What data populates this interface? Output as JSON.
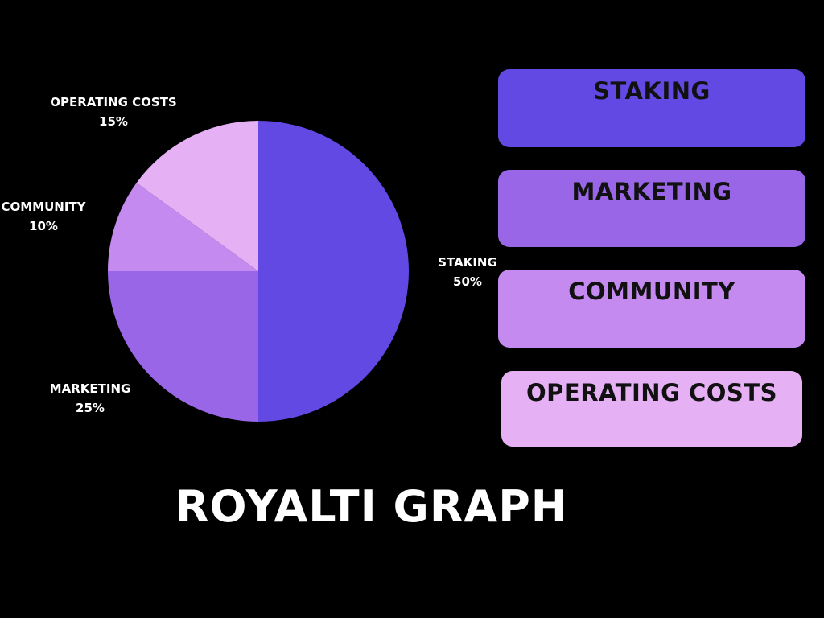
{
  "chart_data": {
    "type": "pie",
    "title": "ROYALTI GRAPH",
    "slices": [
      {
        "label": "STAKING",
        "value": 50,
        "value_label": "50%",
        "color": "#6349E4"
      },
      {
        "label": "MARKETING",
        "value": 25,
        "value_label": "25%",
        "color": "#9966E8"
      },
      {
        "label": "COMMUNITY",
        "value": 10,
        "value_label": "10%",
        "color": "#C48AF0"
      },
      {
        "label": "OPERATING COSTS",
        "value": 15,
        "value_label": "15%",
        "color": "#E6B0F5"
      }
    ],
    "legend": {
      "position": "right",
      "items": [
        "STAKING",
        "MARKETING",
        "COMMUNITY",
        "OPERATING COSTS"
      ]
    }
  },
  "colors": {
    "background": "#000000",
    "label_text": "#FFFFFF",
    "legend_text": "#111111"
  }
}
